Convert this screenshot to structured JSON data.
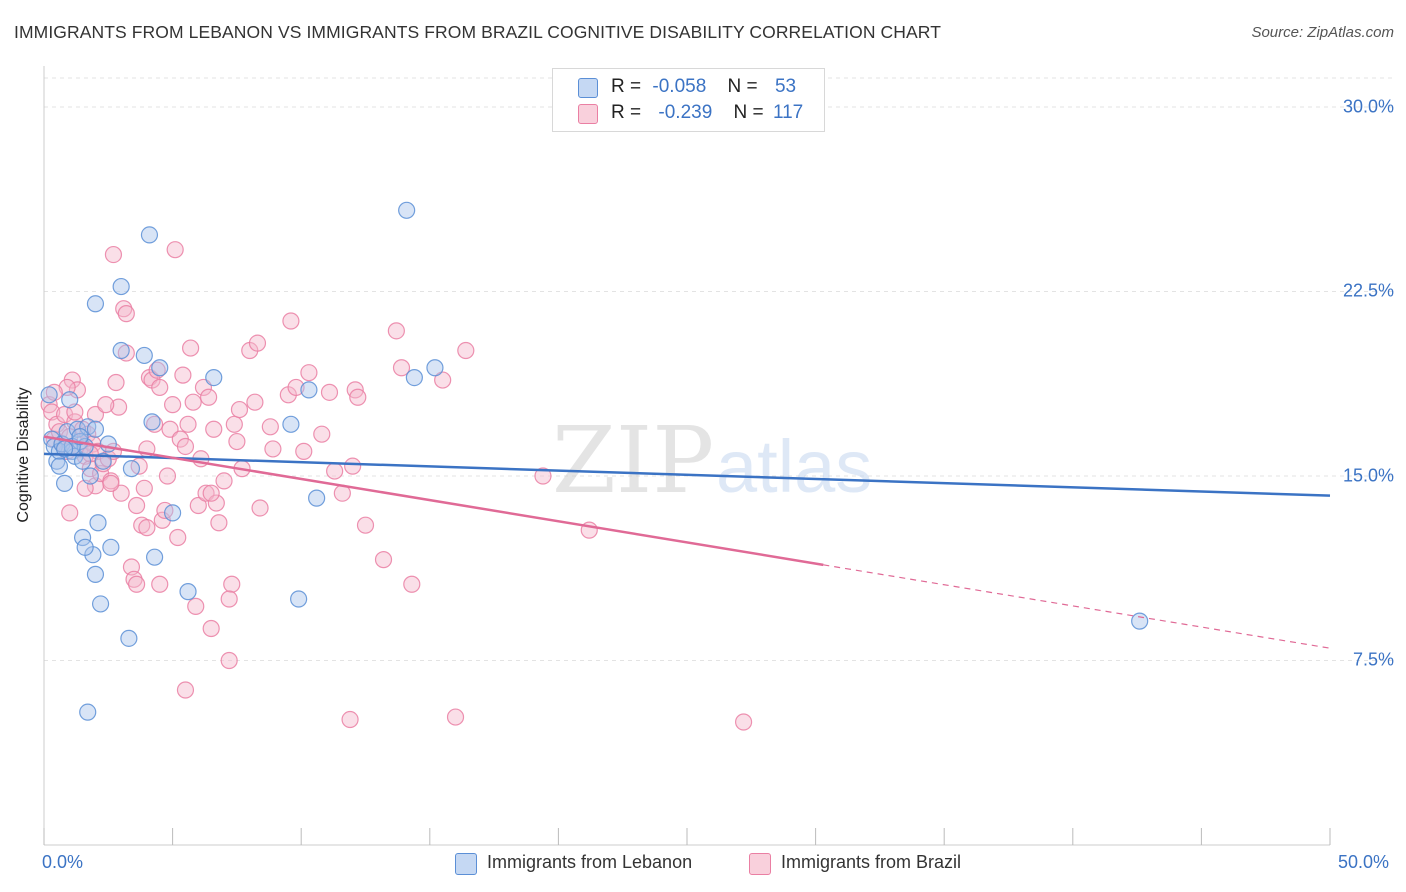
{
  "title": "IMMIGRANTS FROM LEBANON VS IMMIGRANTS FROM BRAZIL COGNITIVE DISABILITY CORRELATION CHART",
  "source": "Source: ZipAtlas.com",
  "watermark": {
    "zip": "ZIP",
    "atlas": "atlas"
  },
  "stats": [
    {
      "r_label": "R =",
      "r_value": "-0.058",
      "n_label": "N =",
      "n_value": "53",
      "color": "#a8c4ec"
    },
    {
      "r_label": "R =",
      "r_value": "-0.239",
      "n_label": "N =",
      "n_value": "117",
      "color": "#f4b8cb"
    }
  ],
  "legend": [
    {
      "label": "Immigrants from Lebanon",
      "color": "#a8c4ec"
    },
    {
      "label": "Immigrants from Brazil",
      "color": "#f4b8cb"
    }
  ],
  "chart_data": {
    "type": "scatter",
    "title": "IMMIGRANTS FROM LEBANON VS IMMIGRANTS FROM BRAZIL COGNITIVE DISABILITY CORRELATION CHART",
    "xlabel": "",
    "ylabel": "Cognitive Disability",
    "xlim": [
      0,
      50
    ],
    "ylim": [
      0,
      31.3
    ],
    "x_tick_labels": [
      "0.0%",
      "50.0%"
    ],
    "y_ticks": [
      7.5,
      15.0,
      22.5,
      30.0
    ],
    "y_tick_labels": [
      "7.5%",
      "15.0%",
      "22.5%",
      "30.0%"
    ],
    "grid": true,
    "legend_position": "bottom",
    "series": [
      {
        "name": "Immigrants from Lebanon",
        "color": "#5b8fd6",
        "fill": "#a8c4ec",
        "trend_color": "#3b73c4",
        "trend": {
          "x0": 0,
          "y0": 15.9,
          "x1": 50,
          "y1": 14.2,
          "dashed_from": null
        },
        "points": [
          [
            0.2,
            18.3
          ],
          [
            0.3,
            16.5
          ],
          [
            0.4,
            16.2
          ],
          [
            0.5,
            15.6
          ],
          [
            0.6,
            16.0
          ],
          [
            0.7,
            16.3
          ],
          [
            0.8,
            14.7
          ],
          [
            0.9,
            16.8
          ],
          [
            1.0,
            18.1
          ],
          [
            1.1,
            16.0
          ],
          [
            1.2,
            15.8
          ],
          [
            1.3,
            16.9
          ],
          [
            1.4,
            16.4
          ],
          [
            1.5,
            15.6
          ],
          [
            1.6,
            16.2
          ],
          [
            1.7,
            17.0
          ],
          [
            1.8,
            15.0
          ],
          [
            1.9,
            11.8
          ],
          [
            2.0,
            11.0
          ],
          [
            2.1,
            13.1
          ],
          [
            2.2,
            9.8
          ],
          [
            2.3,
            15.6
          ],
          [
            1.5,
            12.5
          ],
          [
            1.6,
            12.1
          ],
          [
            2.6,
            12.1
          ],
          [
            1.7,
            5.4
          ],
          [
            2.0,
            22.0
          ],
          [
            3.0,
            22.7
          ],
          [
            3.0,
            20.1
          ],
          [
            3.3,
            8.4
          ],
          [
            3.9,
            19.9
          ],
          [
            4.1,
            24.8
          ],
          [
            4.2,
            17.2
          ],
          [
            4.3,
            11.7
          ],
          [
            4.5,
            19.4
          ],
          [
            5.0,
            13.5
          ],
          [
            5.6,
            10.3
          ],
          [
            6.6,
            19.0
          ],
          [
            9.6,
            17.1
          ],
          [
            10.3,
            18.5
          ],
          [
            10.6,
            14.1
          ],
          [
            9.9,
            10.0
          ],
          [
            14.1,
            25.8
          ],
          [
            14.4,
            19.0
          ],
          [
            15.2,
            19.4
          ],
          [
            42.6,
            9.1
          ],
          [
            1.1,
            16.2
          ],
          [
            0.8,
            16.1
          ],
          [
            1.4,
            16.6
          ],
          [
            2.5,
            16.3
          ],
          [
            3.4,
            15.3
          ],
          [
            2.0,
            16.9
          ],
          [
            0.6,
            15.4
          ]
        ]
      },
      {
        "name": "Immigrants from Brazil",
        "color": "#ea7fa3",
        "fill": "#f4b8cb",
        "trend_color": "#e06a96",
        "trend": {
          "x0": 0,
          "y0": 16.6,
          "x1": 50,
          "y1": 8.0,
          "dashed_from": 30.3
        },
        "points": [
          [
            0.2,
            17.9
          ],
          [
            0.3,
            17.6
          ],
          [
            0.4,
            16.5
          ],
          [
            0.5,
            17.1
          ],
          [
            0.6,
            16.8
          ],
          [
            0.7,
            16.3
          ],
          [
            0.8,
            17.5
          ],
          [
            0.9,
            16.0
          ],
          [
            1.0,
            16.6
          ],
          [
            1.1,
            18.9
          ],
          [
            1.2,
            17.2
          ],
          [
            1.3,
            18.5
          ],
          [
            1.4,
            16.1
          ],
          [
            1.5,
            16.9
          ],
          [
            1.6,
            15.8
          ],
          [
            1.7,
            16.7
          ],
          [
            1.8,
            15.3
          ],
          [
            1.9,
            16.3
          ],
          [
            2.0,
            14.6
          ],
          [
            2.1,
            16.0
          ],
          [
            2.2,
            15.1
          ],
          [
            2.3,
            15.5
          ],
          [
            2.5,
            15.7
          ],
          [
            2.6,
            14.8
          ],
          [
            2.7,
            16.0
          ],
          [
            2.8,
            18.8
          ],
          [
            2.9,
            17.8
          ],
          [
            3.0,
            14.3
          ],
          [
            3.1,
            21.8
          ],
          [
            3.2,
            21.6
          ],
          [
            2.7,
            24.0
          ],
          [
            3.4,
            11.3
          ],
          [
            3.5,
            10.8
          ],
          [
            3.6,
            13.8
          ],
          [
            3.7,
            15.4
          ],
          [
            3.8,
            13.0
          ],
          [
            3.9,
            14.5
          ],
          [
            4.0,
            16.1
          ],
          [
            4.1,
            19.0
          ],
          [
            4.2,
            18.9
          ],
          [
            4.3,
            17.1
          ],
          [
            4.4,
            19.3
          ],
          [
            4.5,
            18.6
          ],
          [
            4.6,
            13.2
          ],
          [
            4.7,
            13.6
          ],
          [
            4.8,
            15.0
          ],
          [
            4.9,
            16.9
          ],
          [
            5.0,
            17.9
          ],
          [
            5.1,
            24.2
          ],
          [
            5.2,
            12.5
          ],
          [
            5.3,
            16.5
          ],
          [
            5.4,
            19.1
          ],
          [
            5.5,
            16.2
          ],
          [
            5.6,
            17.1
          ],
          [
            5.7,
            20.2
          ],
          [
            5.8,
            18.0
          ],
          [
            5.9,
            9.7
          ],
          [
            6.0,
            13.8
          ],
          [
            6.1,
            15.7
          ],
          [
            6.2,
            18.6
          ],
          [
            6.3,
            14.3
          ],
          [
            6.4,
            18.2
          ],
          [
            6.5,
            8.8
          ],
          [
            6.6,
            16.9
          ],
          [
            6.7,
            13.9
          ],
          [
            6.8,
            13.1
          ],
          [
            7.0,
            14.8
          ],
          [
            7.2,
            7.5
          ],
          [
            7.3,
            10.6
          ],
          [
            7.4,
            17.1
          ],
          [
            7.5,
            16.4
          ],
          [
            7.6,
            17.7
          ],
          [
            7.7,
            15.3
          ],
          [
            8.0,
            20.1
          ],
          [
            8.2,
            18.0
          ],
          [
            8.3,
            20.4
          ],
          [
            8.4,
            13.7
          ],
          [
            8.8,
            17.0
          ],
          [
            9.5,
            18.3
          ],
          [
            9.6,
            21.3
          ],
          [
            9.8,
            18.6
          ],
          [
            10.1,
            16.0
          ],
          [
            10.8,
            16.7
          ],
          [
            11.1,
            18.4
          ],
          [
            11.6,
            14.3
          ],
          [
            12.0,
            15.4
          ],
          [
            12.1,
            18.5
          ],
          [
            12.2,
            18.2
          ],
          [
            12.5,
            13.0
          ],
          [
            13.2,
            11.6
          ],
          [
            13.7,
            20.9
          ],
          [
            13.9,
            19.4
          ],
          [
            14.3,
            10.6
          ],
          [
            15.5,
            18.9
          ],
          [
            16.4,
            20.1
          ],
          [
            19.4,
            15.0
          ],
          [
            21.2,
            12.8
          ],
          [
            11.9,
            5.1
          ],
          [
            16.0,
            5.2
          ],
          [
            27.2,
            5.0
          ],
          [
            5.5,
            6.3
          ],
          [
            3.6,
            10.6
          ],
          [
            1.0,
            13.5
          ],
          [
            1.6,
            14.5
          ],
          [
            2.0,
            17.5
          ],
          [
            2.4,
            17.9
          ],
          [
            0.9,
            18.6
          ],
          [
            1.2,
            17.6
          ],
          [
            3.2,
            20.0
          ],
          [
            4.5,
            10.6
          ],
          [
            6.5,
            14.3
          ],
          [
            7.2,
            10.0
          ],
          [
            8.9,
            16.1
          ],
          [
            10.3,
            19.2
          ],
          [
            11.3,
            15.2
          ],
          [
            0.4,
            18.4
          ],
          [
            1.8,
            15.9
          ],
          [
            2.6,
            14.7
          ],
          [
            4.0,
            12.9
          ]
        ]
      }
    ]
  }
}
